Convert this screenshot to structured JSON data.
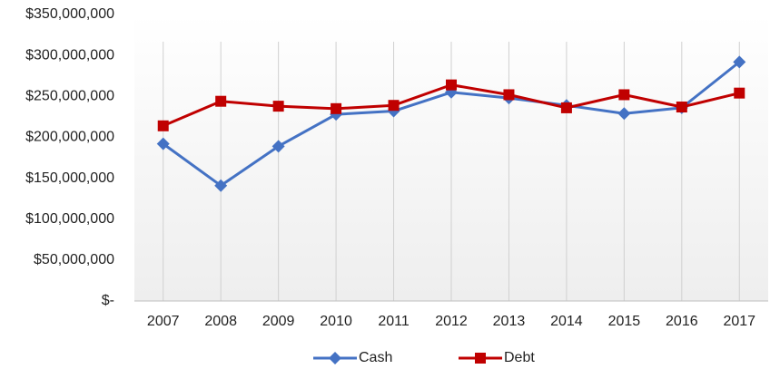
{
  "chart_data": {
    "type": "line",
    "categories": [
      "2007",
      "2008",
      "2009",
      "2010",
      "2011",
      "2012",
      "2013",
      "2014",
      "2015",
      "2016",
      "2017"
    ],
    "series": [
      {
        "name": "Cash",
        "color": "#4472c4",
        "marker": "diamond",
        "values": [
          192000000,
          141000000,
          189000000,
          228000000,
          232000000,
          255000000,
          248000000,
          239000000,
          229000000,
          236000000,
          292000000
        ]
      },
      {
        "name": "Debt",
        "color": "#c00000",
        "marker": "square",
        "values": [
          214000000,
          244000000,
          238000000,
          235000000,
          239000000,
          264000000,
          252000000,
          236000000,
          252000000,
          237000000,
          254000000
        ]
      }
    ],
    "ylim": [
      0,
      350000000
    ],
    "yticks": [
      {
        "value": 0,
        "label": "$-"
      },
      {
        "value": 50000000,
        "label": "$50,000,000"
      },
      {
        "value": 100000000,
        "label": "$100,000,000"
      },
      {
        "value": 150000000,
        "label": "$150,000,000"
      },
      {
        "value": 200000000,
        "label": "$200,000,000"
      },
      {
        "value": 250000000,
        "label": "$250,000,000"
      },
      {
        "value": 300000000,
        "label": "$300,000,000"
      },
      {
        "value": 350000000,
        "label": "$350,000,000"
      }
    ],
    "legend": "bottom"
  }
}
